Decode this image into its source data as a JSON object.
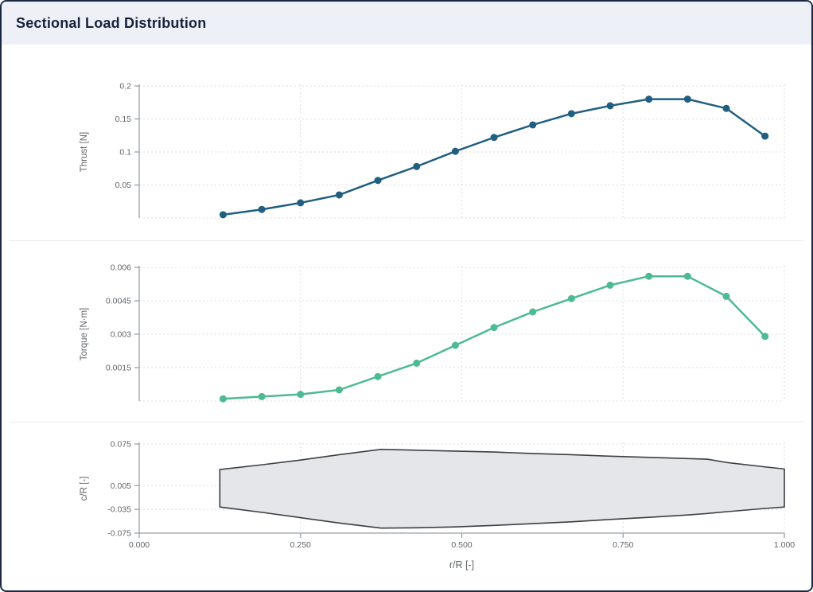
{
  "header": {
    "title": "Sectional Load Distribution"
  },
  "colors": {
    "border": "#1b2945",
    "header_bg": "#edf1f7",
    "title_text": "#17213c",
    "thrust_line": "#205f80",
    "torque_line": "#4dba92",
    "planform_fill": "#e4e6ea",
    "planform_stroke": "#3a3f44",
    "grid": "#dadcdf",
    "axis": "#9aa0a6",
    "tick_text": "#5f6468",
    "separator": "#e8eaee"
  },
  "chart_data": [
    {
      "type": "line",
      "series_name": "thrust",
      "ylabel": "Thrust [N]",
      "color": "#205f80",
      "x": [
        0.13,
        0.19,
        0.25,
        0.31,
        0.37,
        0.43,
        0.49,
        0.55,
        0.61,
        0.67,
        0.73,
        0.79,
        0.85,
        0.91,
        0.97
      ],
      "values": [
        0.005,
        0.013,
        0.023,
        0.035,
        0.057,
        0.078,
        0.101,
        0.122,
        0.141,
        0.158,
        0.17,
        0.18,
        0.18,
        0.166,
        0.124
      ],
      "ylim": [
        0,
        0.2
      ],
      "ytick_values": [
        0.2,
        0.15,
        0.1,
        0.05
      ],
      "ytick_labels": [
        "0.2",
        "0.15",
        "0.1",
        "0.05"
      ],
      "xlim": [
        0,
        1
      ],
      "grid": "dashed"
    },
    {
      "type": "line",
      "series_name": "torque",
      "ylabel": "Torque [N·m]",
      "color": "#4dba92",
      "x": [
        0.13,
        0.19,
        0.25,
        0.31,
        0.37,
        0.43,
        0.49,
        0.55,
        0.61,
        0.67,
        0.73,
        0.79,
        0.85,
        0.91,
        0.97
      ],
      "values": [
        0.0001,
        0.0002,
        0.0003,
        0.0005,
        0.0011,
        0.0017,
        0.0025,
        0.0033,
        0.004,
        0.0046,
        0.0052,
        0.0056,
        0.0056,
        0.0047,
        0.0029
      ],
      "ylim": [
        0,
        0.006
      ],
      "ytick_values": [
        0.006,
        0.0045,
        0.003,
        0.0015
      ],
      "ytick_labels": [
        "0.006",
        "0.0045",
        "0.003",
        "0.0015"
      ],
      "xlim": [
        0,
        1
      ],
      "grid": "dashed"
    },
    {
      "type": "area",
      "series_name": "blade-planform",
      "ylabel": "c/R [-]",
      "xlabel": "r/R [-]",
      "x": [
        0.125,
        0.19,
        0.25,
        0.31,
        0.375,
        0.43,
        0.49,
        0.55,
        0.61,
        0.67,
        0.73,
        0.79,
        0.85,
        0.88,
        0.91,
        0.97,
        1.0
      ],
      "upper": [
        0.032,
        0.04,
        0.048,
        0.057,
        0.066,
        0.0645,
        0.063,
        0.0615,
        0.059,
        0.057,
        0.0545,
        0.0525,
        0.0505,
        0.0495,
        0.044,
        0.0365,
        0.033
      ],
      "lower": [
        -0.031,
        -0.04,
        -0.049,
        -0.058,
        -0.0665,
        -0.066,
        -0.0645,
        -0.062,
        -0.059,
        -0.056,
        -0.052,
        -0.0485,
        -0.0445,
        -0.042,
        -0.039,
        -0.0335,
        -0.031
      ],
      "ylim": [
        -0.075,
        0.075
      ],
      "ytick_values": [
        0.075,
        0.005,
        -0.035,
        -0.075
      ],
      "ytick_labels": [
        "0.075",
        "0.005",
        "-0.035",
        "-0.075"
      ],
      "xtick_values": [
        0,
        0.25,
        0.5,
        0.75,
        1
      ],
      "xtick_labels": [
        "0.000",
        "0.250",
        "0.500",
        "0.750",
        "1.000"
      ],
      "xlim": [
        0,
        1
      ],
      "grid": "dashed"
    }
  ]
}
